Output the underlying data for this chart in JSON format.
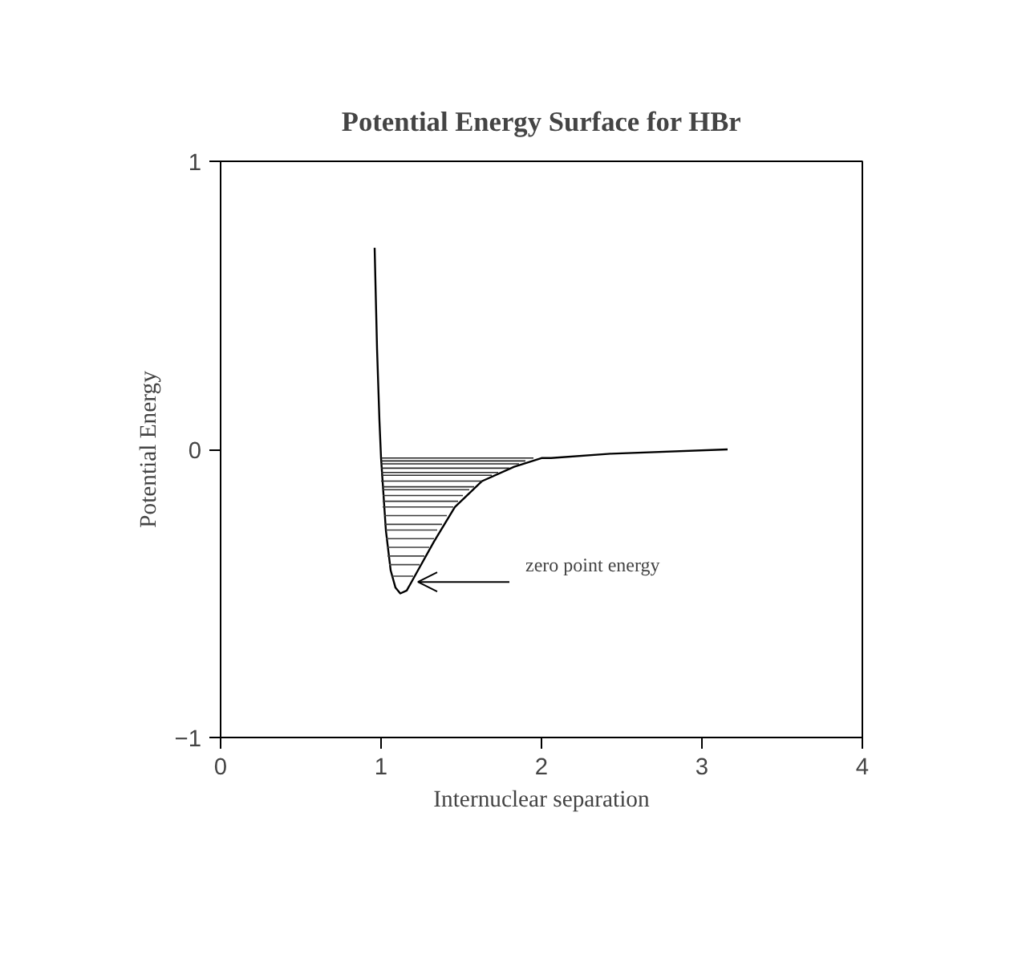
{
  "chart_data": {
    "type": "line",
    "title": "Potential Energy Surface for HBr",
    "xlabel": "Internuclear separation",
    "ylabel": "Potential Energy",
    "xlim": [
      0,
      4
    ],
    "ylim": [
      -1,
      1
    ],
    "xticks": [
      0,
      1,
      2,
      3,
      4
    ],
    "yticks": [
      -1,
      0,
      1
    ],
    "grid": false,
    "marker": "none",
    "line_style": "solid",
    "annotations": [
      {
        "text": "zero point energy",
        "x": 1.2,
        "y": -0.44
      }
    ],
    "series": [
      {
        "color": "#000000",
        "x": [
          0.96,
          0.975,
          0.99,
          1.0,
          1.03,
          1.06,
          1.09,
          1.12,
          1.16,
          1.23,
          1.33,
          1.46,
          1.63,
          1.83,
          2.0,
          2.06,
          2.43,
          3.16
        ],
        "values": [
          0.7,
          0.35,
          0.1,
          -0.03,
          -0.28,
          -0.42,
          -0.48,
          -0.5,
          -0.49,
          -0.42,
          -0.32,
          -0.2,
          -0.11,
          -0.06,
          -0.03,
          -0.03,
          -0.015,
          0
        ]
      },
      {
        "color": "#202020",
        "x": [
          1.0,
          1.95
        ],
        "values": [
          -0.03,
          -0.03
        ]
      },
      {
        "color": "#222222",
        "x": [
          1.0,
          1.9
        ],
        "values": [
          -0.04,
          -0.04
        ]
      },
      {
        "color": "#242424",
        "x": [
          1.0,
          1.86
        ],
        "values": [
          -0.05,
          -0.05
        ]
      },
      {
        "color": "#262626",
        "x": [
          1.0,
          1.8
        ],
        "values": [
          -0.065,
          -0.065
        ]
      },
      {
        "color": "#282828",
        "x": [
          1.0,
          1.73
        ],
        "values": [
          -0.08,
          -0.08
        ]
      },
      {
        "color": "#2a2a2a",
        "x": [
          1.0,
          1.69
        ],
        "values": [
          -0.09,
          -0.09
        ]
      },
      {
        "color": "#2c2c2c",
        "x": [
          1.0,
          1.63
        ],
        "values": [
          -0.11,
          -0.11
        ]
      },
      {
        "color": "#2e2e2e",
        "x": [
          1.01,
          1.58
        ],
        "values": [
          -0.13,
          -0.13
        ]
      },
      {
        "color": "#303030",
        "x": [
          1.01,
          1.55
        ],
        "values": [
          -0.14,
          -0.14
        ]
      },
      {
        "color": "#323232",
        "x": [
          1.01,
          1.51
        ],
        "values": [
          -0.16,
          -0.16
        ]
      },
      {
        "color": "#343434",
        "x": [
          1.01,
          1.48
        ],
        "values": [
          -0.18,
          -0.18
        ]
      },
      {
        "color": "#363636",
        "x": [
          1.01,
          1.45
        ],
        "values": [
          -0.2,
          -0.2
        ]
      },
      {
        "color": "#383838",
        "x": [
          1.02,
          1.41
        ],
        "values": [
          -0.23,
          -0.23
        ]
      },
      {
        "color": "#3a3a3a",
        "x": [
          1.02,
          1.38
        ],
        "values": [
          -0.26,
          -0.26
        ]
      },
      {
        "color": "#3c3c3c",
        "x": [
          1.03,
          1.35
        ],
        "values": [
          -0.28,
          -0.28
        ]
      },
      {
        "color": "#3e3e3e",
        "x": [
          1.03,
          1.33
        ],
        "values": [
          -0.31,
          -0.31
        ]
      },
      {
        "color": "#404040",
        "x": [
          1.04,
          1.3
        ],
        "values": [
          -0.34,
          -0.34
        ]
      },
      {
        "color": "#424242",
        "x": [
          1.04,
          1.27
        ],
        "values": [
          -0.37,
          -0.37
        ]
      },
      {
        "color": "#444444",
        "x": [
          1.05,
          1.24
        ],
        "values": [
          -0.4,
          -0.4
        ]
      },
      {
        "color": "#464646",
        "x": [
          1.07,
          1.2
        ],
        "values": [
          -0.44,
          -0.44
        ]
      }
    ]
  }
}
